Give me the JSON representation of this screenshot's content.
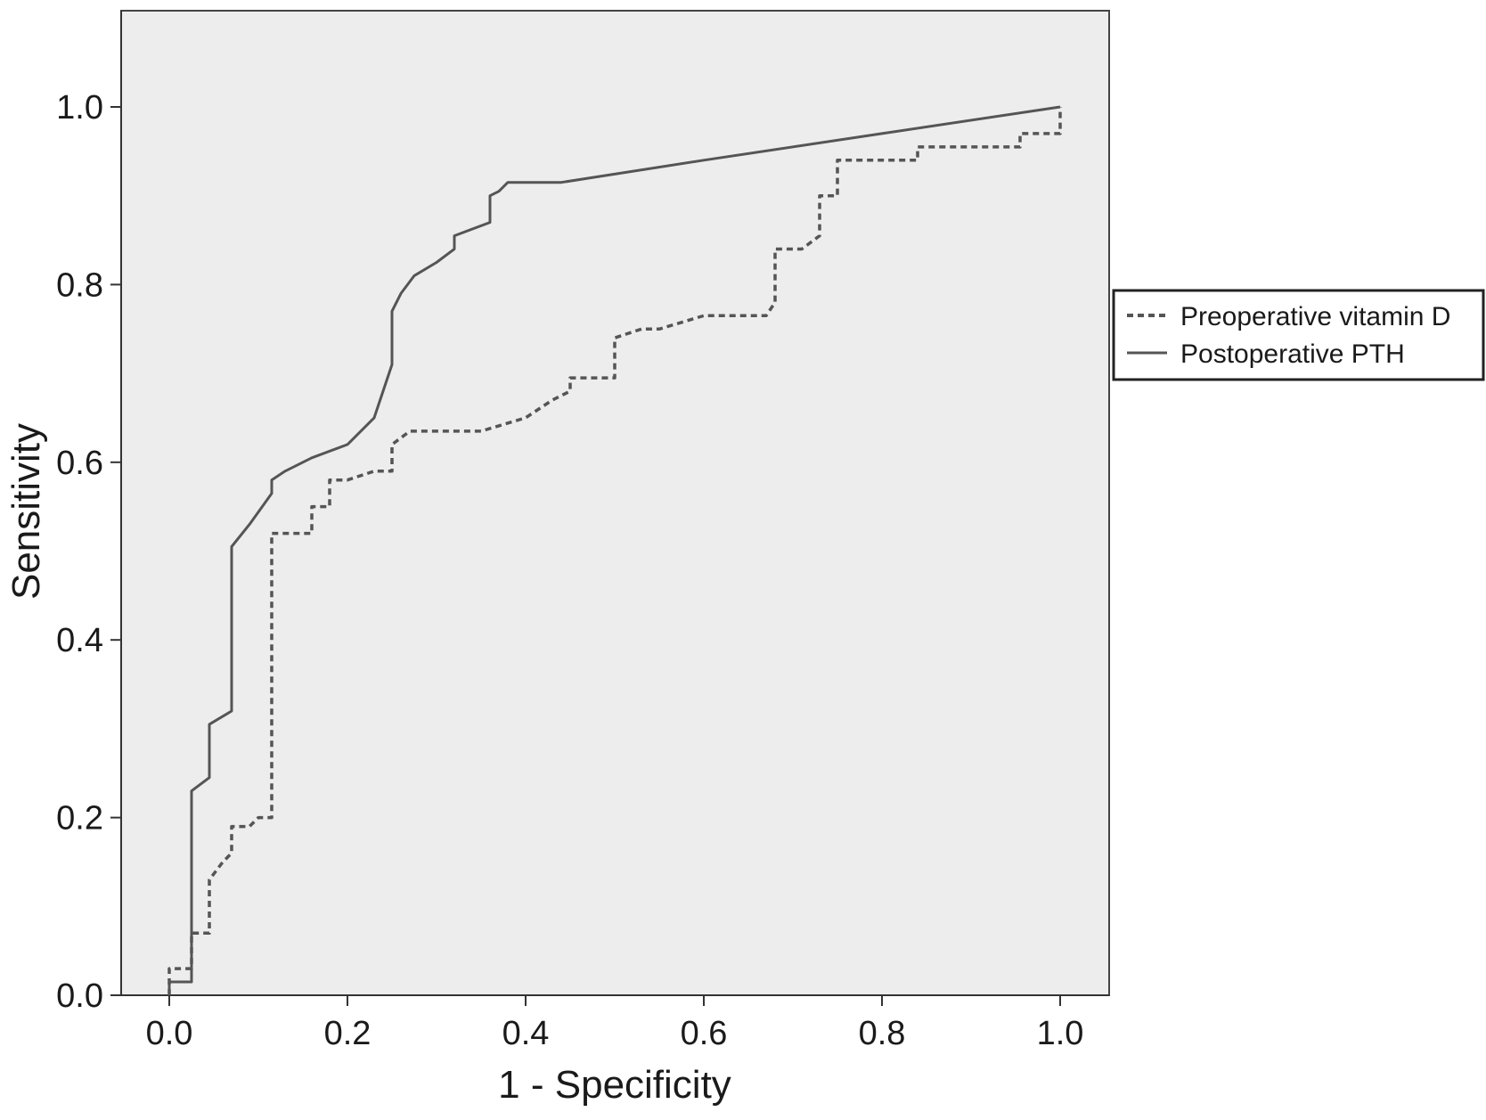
{
  "chart_data": {
    "type": "line",
    "title": "",
    "xlabel": "1 - Specificity",
    "ylabel": "Sensitivity",
    "xlim": [
      -0.05,
      1.06
    ],
    "ylim": [
      0.0,
      1.1
    ],
    "xticks": [
      "0.0",
      "0.2",
      "0.4",
      "0.6",
      "0.8",
      "1.0"
    ],
    "yticks": [
      "0.0",
      "0.2",
      "0.4",
      "0.6",
      "0.8",
      "1.0"
    ],
    "grid": false,
    "legend_position": "right",
    "plot_background": "#ededed",
    "series": [
      {
        "name": "Preoperative vitamin D",
        "style": "dashed",
        "color": "#555555",
        "points": [
          [
            0.0,
            0.0
          ],
          [
            0.0,
            0.03
          ],
          [
            0.025,
            0.03
          ],
          [
            0.025,
            0.07
          ],
          [
            0.045,
            0.07
          ],
          [
            0.045,
            0.13
          ],
          [
            0.06,
            0.15
          ],
          [
            0.07,
            0.16
          ],
          [
            0.07,
            0.19
          ],
          [
            0.09,
            0.19
          ],
          [
            0.1,
            0.2
          ],
          [
            0.115,
            0.2
          ],
          [
            0.115,
            0.52
          ],
          [
            0.16,
            0.52
          ],
          [
            0.16,
            0.55
          ],
          [
            0.18,
            0.55
          ],
          [
            0.18,
            0.58
          ],
          [
            0.2,
            0.58
          ],
          [
            0.23,
            0.59
          ],
          [
            0.25,
            0.59
          ],
          [
            0.25,
            0.62
          ],
          [
            0.27,
            0.635
          ],
          [
            0.3,
            0.635
          ],
          [
            0.35,
            0.635
          ],
          [
            0.4,
            0.65
          ],
          [
            0.43,
            0.67
          ],
          [
            0.45,
            0.68
          ],
          [
            0.45,
            0.695
          ],
          [
            0.5,
            0.695
          ],
          [
            0.5,
            0.74
          ],
          [
            0.53,
            0.75
          ],
          [
            0.55,
            0.75
          ],
          [
            0.6,
            0.765
          ],
          [
            0.62,
            0.765
          ],
          [
            0.67,
            0.765
          ],
          [
            0.68,
            0.78
          ],
          [
            0.68,
            0.84
          ],
          [
            0.71,
            0.84
          ],
          [
            0.73,
            0.855
          ],
          [
            0.73,
            0.9
          ],
          [
            0.75,
            0.9
          ],
          [
            0.75,
            0.94
          ],
          [
            0.8,
            0.94
          ],
          [
            0.84,
            0.94
          ],
          [
            0.84,
            0.955
          ],
          [
            0.9,
            0.955
          ],
          [
            0.955,
            0.955
          ],
          [
            0.955,
            0.97
          ],
          [
            1.0,
            0.97
          ],
          [
            1.0,
            1.0
          ]
        ]
      },
      {
        "name": "Postoperative PTH",
        "style": "solid",
        "color": "#555555",
        "points": [
          [
            0.0,
            0.0
          ],
          [
            0.0,
            0.015
          ],
          [
            0.025,
            0.015
          ],
          [
            0.025,
            0.23
          ],
          [
            0.045,
            0.245
          ],
          [
            0.045,
            0.305
          ],
          [
            0.07,
            0.32
          ],
          [
            0.07,
            0.505
          ],
          [
            0.09,
            0.53
          ],
          [
            0.115,
            0.565
          ],
          [
            0.115,
            0.58
          ],
          [
            0.13,
            0.59
          ],
          [
            0.16,
            0.605
          ],
          [
            0.2,
            0.62
          ],
          [
            0.21,
            0.63
          ],
          [
            0.23,
            0.65
          ],
          [
            0.25,
            0.71
          ],
          [
            0.25,
            0.77
          ],
          [
            0.26,
            0.79
          ],
          [
            0.275,
            0.81
          ],
          [
            0.3,
            0.825
          ],
          [
            0.32,
            0.84
          ],
          [
            0.32,
            0.855
          ],
          [
            0.36,
            0.87
          ],
          [
            0.36,
            0.9
          ],
          [
            0.37,
            0.905
          ],
          [
            0.38,
            0.915
          ],
          [
            0.44,
            0.915
          ],
          [
            0.6,
            0.94
          ],
          [
            0.8,
            0.97
          ],
          [
            1.0,
            1.0
          ]
        ]
      }
    ]
  }
}
